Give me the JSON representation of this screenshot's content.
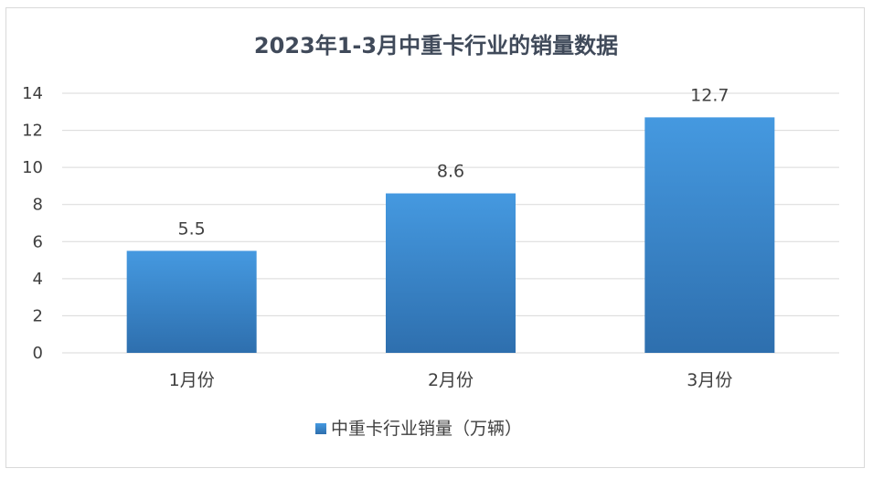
{
  "chart_data": {
    "type": "bar",
    "title": "2023年1-3月中重卡行业的销量数据",
    "categories": [
      "1月份",
      "2月份",
      "3月份"
    ],
    "series": [
      {
        "name": "中重卡行业销量（万辆）",
        "values": [
          5.5,
          8.6,
          12.7
        ]
      }
    ],
    "ylim": [
      0,
      14
    ],
    "yticks": [
      "0",
      "2",
      "4",
      "6",
      "8",
      "10",
      "12",
      "14"
    ],
    "grid": true,
    "legend": "bottom",
    "colors": {
      "bar_top": "#4599e0",
      "bar_bottom": "#2e6fae",
      "grid": "#d9d9d9",
      "text": "#404040",
      "title": "#404a5a"
    }
  }
}
